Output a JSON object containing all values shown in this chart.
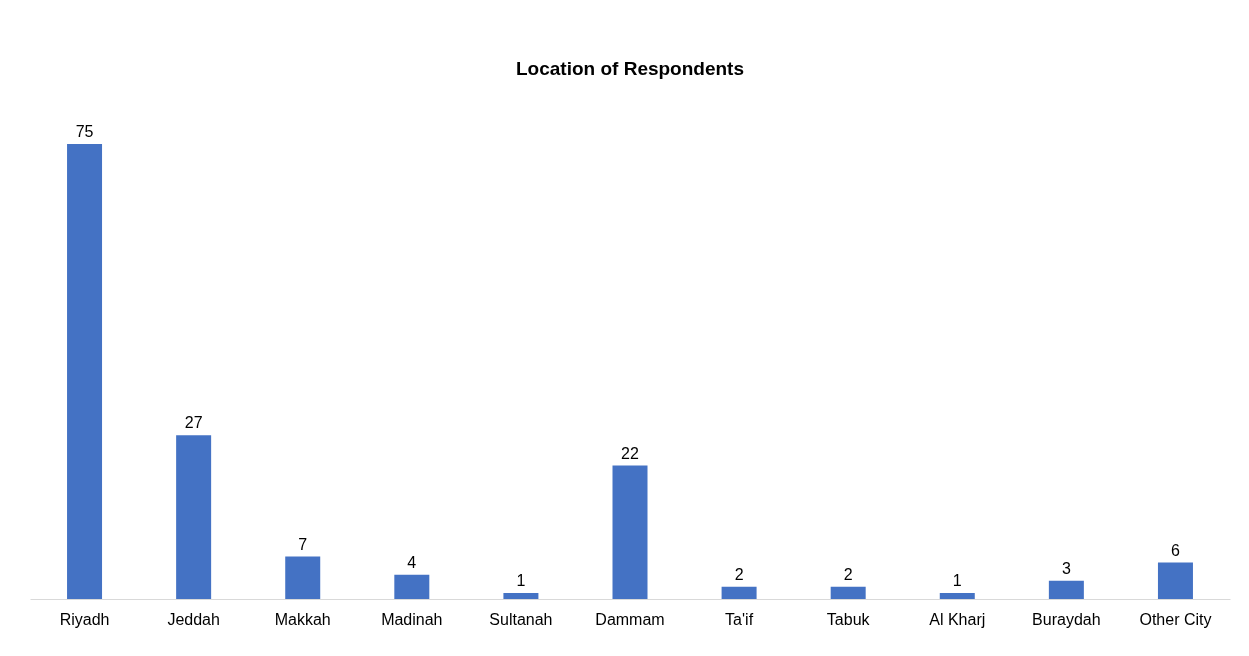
{
  "chart_data": {
    "type": "bar",
    "title": "Location of Respondents",
    "categories": [
      "Riyadh",
      "Jeddah",
      "Makkah",
      "Madinah",
      "Sultanah",
      "Dammam",
      "Ta'if",
      "Tabuk",
      "Al Kharj",
      "Buraydah",
      "Other City"
    ],
    "values": [
      75,
      27,
      7,
      4,
      1,
      22,
      2,
      2,
      1,
      3,
      6
    ],
    "color": "#4472c4",
    "data_labels": true,
    "tick_labels": "x"
  }
}
